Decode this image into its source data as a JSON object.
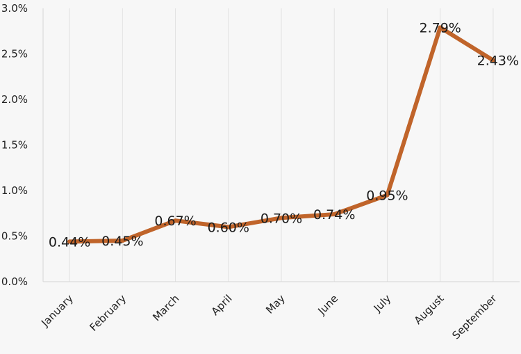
{
  "chart_data": {
    "type": "line",
    "title": "",
    "xlabel": "",
    "ylabel": "",
    "categories": [
      "January",
      "February",
      "March",
      "April",
      "May",
      "June",
      "July",
      "August",
      "September"
    ],
    "series": [
      {
        "values": [
          0.44,
          0.45,
          0.67,
          0.6,
          0.7,
          0.74,
          0.95,
          2.79,
          2.43
        ],
        "labels": [
          "0.44%",
          "0.45%",
          "0.67%",
          "0.60%",
          "0.70%",
          "0.74%",
          "0.95%",
          "2.79%",
          "2.43%"
        ],
        "color": "#c0642a"
      }
    ],
    "ylim": [
      0,
      3
    ],
    "yticks": [
      0,
      0.5,
      1,
      1.5,
      2,
      2.5,
      3
    ],
    "ytick_labels": [
      "0.0%",
      "0.5%",
      "1.0%",
      "1.5%",
      "2.0%",
      "2.5%",
      "3.0%"
    ],
    "grid": "vertical",
    "legend": "none"
  }
}
